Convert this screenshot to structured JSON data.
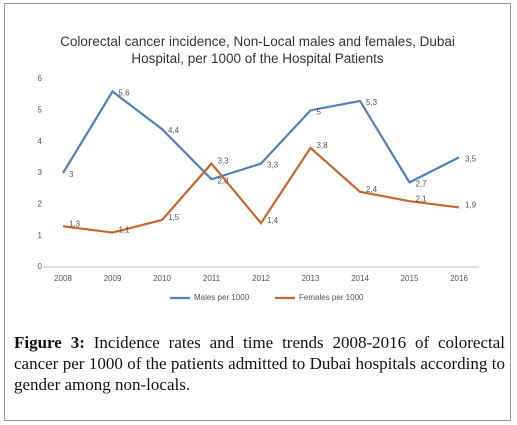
{
  "chart_data": {
    "type": "line",
    "title": "Colorectal cancer incidence, Non-Local males and females, Dubai Hospital, per 1000 of the Hospital Patients",
    "categories": [
      "2008",
      "2009",
      "2010",
      "2011",
      "2012",
      "2013",
      "2014",
      "2015",
      "2016"
    ],
    "series": [
      {
        "name": "Males per 1000",
        "color": "#4f81bd",
        "values": [
          3,
          5.6,
          4.4,
          2.8,
          3.3,
          5,
          5.3,
          2.7,
          3.5
        ],
        "value_labels": [
          "3",
          "5,6",
          "4,4",
          "2,8",
          "3,3",
          "5",
          "5,3",
          "2,7",
          "3,5"
        ]
      },
      {
        "name": "Females per 1000",
        "color": "#c8662b",
        "values": [
          1.3,
          1.1,
          1.5,
          3.3,
          1.4,
          3.8,
          2.4,
          2.1,
          1.9
        ],
        "value_labels": [
          "1,3",
          "1,1",
          "1,5",
          "3,3",
          "1,4",
          "3,8",
          "2,4",
          "2,1",
          "1,9"
        ]
      }
    ],
    "ylim": [
      0,
      6
    ],
    "yticks": [
      0,
      1,
      2,
      3,
      4,
      5,
      6
    ],
    "grid": false,
    "legend": "bottom"
  },
  "caption": {
    "label": "Figure 3:",
    "text": "Incidence rates and time trends 2008-2016 of colorectal cancer per 1000 of the patients admitted to Dubai hospitals according to gender among non-locals."
  }
}
